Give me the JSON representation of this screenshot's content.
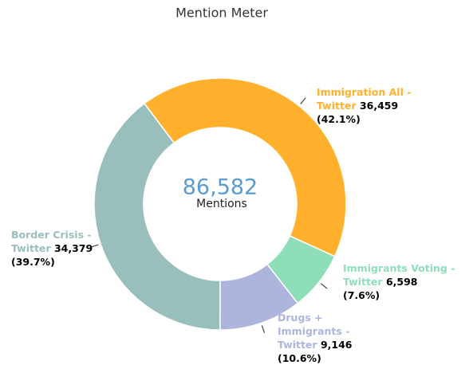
{
  "chart_data": {
    "type": "pie",
    "donut": true,
    "title": "Mention Meter",
    "center_value": {
      "value": 86582,
      "label": "86,582"
    },
    "center_caption": "Mentions",
    "categories": [
      "Immigration All - Twitter",
      "Immigrants Voting - Twitter",
      "Drugs + Immigrants - Twitter",
      "Border Crisis - Twitter"
    ],
    "values": [
      36459,
      6598,
      9146,
      34379
    ],
    "value_labels": [
      "36,459",
      "6,598",
      "9,146",
      "34,379"
    ],
    "percent_labels": [
      "(42.1%)",
      "(7.6%)",
      "(10.6%)",
      "(39.7%)"
    ],
    "colors": [
      "#FFB12E",
      "#8EDFB9",
      "#ADB5DC",
      "#99BFBD"
    ]
  }
}
